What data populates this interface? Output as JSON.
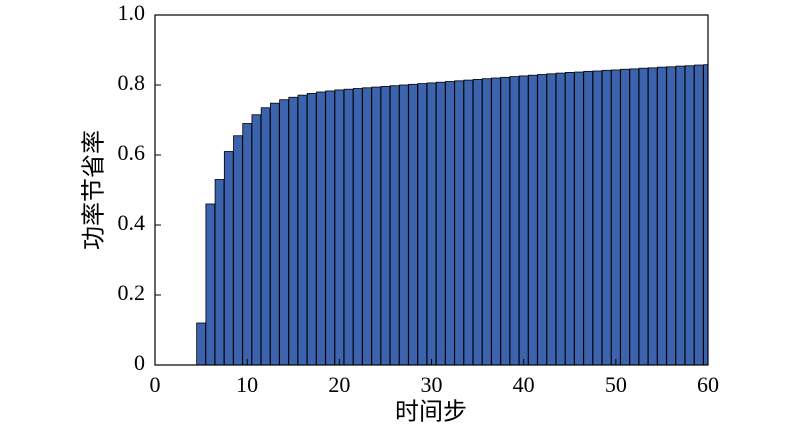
{
  "chart_data": {
    "type": "bar",
    "xlabel": "时间步",
    "ylabel": "功率节省率",
    "x": [
      5,
      6,
      7,
      8,
      9,
      10,
      11,
      12,
      13,
      14,
      15,
      16,
      17,
      18,
      19,
      20,
      21,
      22,
      23,
      24,
      25,
      26,
      27,
      28,
      29,
      30,
      31,
      32,
      33,
      34,
      35,
      36,
      37,
      38,
      39,
      40,
      41,
      42,
      43,
      44,
      45,
      46,
      47,
      48,
      49,
      50,
      51,
      52,
      53,
      54,
      55,
      56,
      57,
      58,
      59,
      60
    ],
    "values": [
      0.12,
      0.46,
      0.53,
      0.61,
      0.655,
      0.69,
      0.715,
      0.735,
      0.748,
      0.758,
      0.765,
      0.771,
      0.776,
      0.78,
      0.783,
      0.786,
      0.788,
      0.79,
      0.792,
      0.794,
      0.796,
      0.798,
      0.8,
      0.802,
      0.804,
      0.806,
      0.808,
      0.81,
      0.812,
      0.814,
      0.816,
      0.818,
      0.82,
      0.822,
      0.824,
      0.826,
      0.828,
      0.83,
      0.832,
      0.834,
      0.836,
      0.837,
      0.839,
      0.84,
      0.842,
      0.843,
      0.845,
      0.846,
      0.848,
      0.849,
      0.851,
      0.852,
      0.854,
      0.855,
      0.857,
      0.858
    ],
    "color": "#3c64ae",
    "xlim": [
      0,
      60
    ],
    "xticks": [
      0,
      10,
      20,
      30,
      40,
      50,
      60
    ],
    "ylim": [
      0,
      1
    ],
    "yticks": [
      0,
      0.2,
      0.4,
      0.6,
      0.8,
      {
        "value": 1,
        "label": "1.0"
      }
    ]
  }
}
